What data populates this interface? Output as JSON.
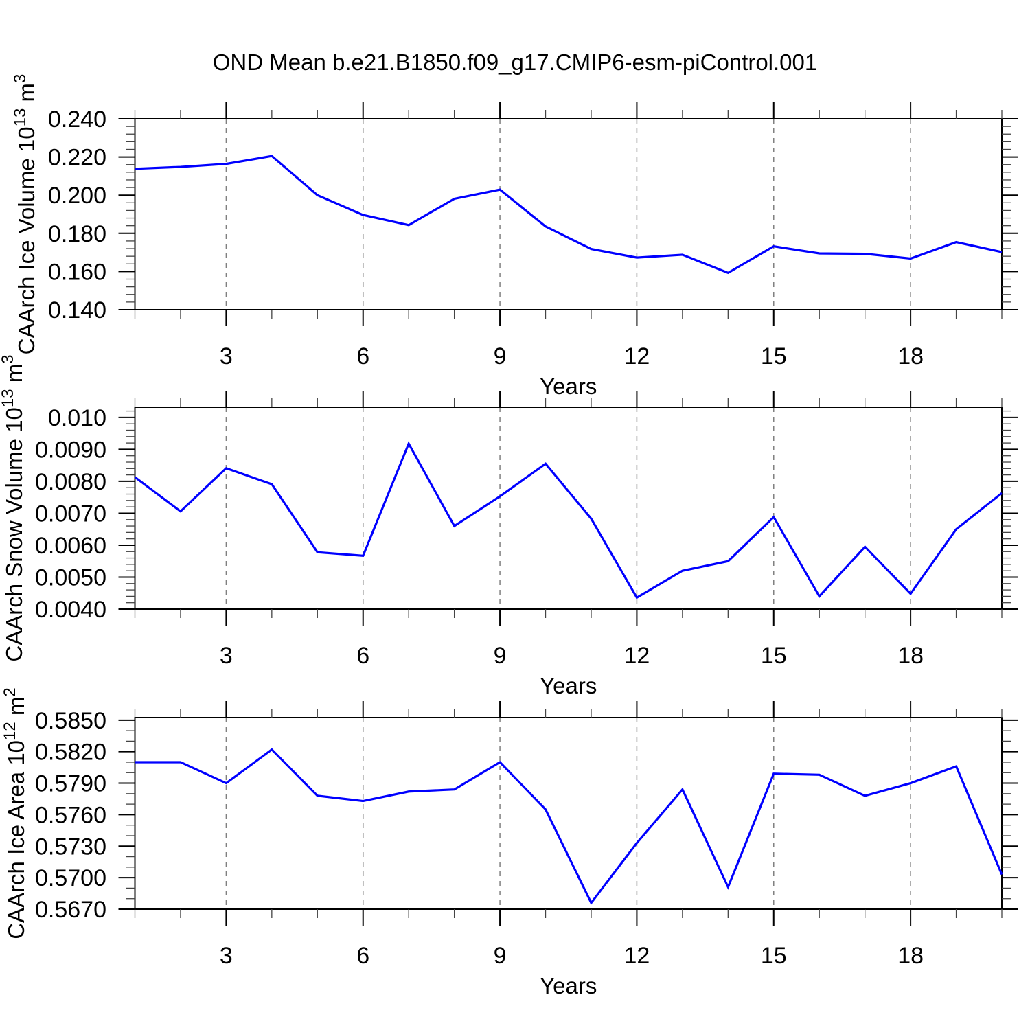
{
  "title": "OND Mean b.e21.B1850.f09_g17.CMIP6-esm-piControl.001",
  "colors": {
    "line": "#0000ff",
    "frame": "#000000",
    "grid": "#808080",
    "minor_tick": "#444444"
  },
  "chart_data": [
    {
      "type": "line",
      "name": "ice-volume",
      "ylabel": "CAArch Ice Volume 10^13 m^3",
      "ylabel_parts": [
        {
          "t": "CAArch Ice Volume 10",
          "sup": false
        },
        {
          "t": "13",
          "sup": true
        },
        {
          "t": " m",
          "sup": false
        },
        {
          "t": "3",
          "sup": true
        }
      ],
      "xlabel": "Years",
      "xlim": [
        1,
        20
      ],
      "ylim": [
        0.14,
        0.24
      ],
      "ytick_values": [
        0.14,
        0.16,
        0.18,
        0.2,
        0.22,
        0.24
      ],
      "ytick_labels": [
        "0.140",
        "0.160",
        "0.180",
        "0.200",
        "0.220",
        "0.240"
      ],
      "y_minor_step": 0.004,
      "xtick_major": [
        3,
        6,
        9,
        12,
        15,
        18
      ],
      "xtick_labels": [
        "3",
        "6",
        "9",
        "12",
        "15",
        "18"
      ],
      "x_minor_step": 1,
      "grid_at_major_x": true,
      "x": [
        1,
        2,
        3,
        4,
        5,
        6,
        7,
        8,
        9,
        10,
        11,
        12,
        13,
        14,
        15,
        16,
        17,
        18,
        19,
        20
      ],
      "values": [
        0.2138,
        0.2148,
        0.2164,
        0.2205,
        0.2,
        0.1896,
        0.1843,
        0.1981,
        0.2029,
        0.1836,
        0.1718,
        0.1673,
        0.1688,
        0.1593,
        0.1732,
        0.1695,
        0.1693,
        0.1668,
        0.1754,
        0.1702
      ]
    },
    {
      "type": "line",
      "name": "snow-volume",
      "ylabel": "CAArch Snow Volume 10^13 m^3",
      "ylabel_parts": [
        {
          "t": "CAArch Snow Volume 10",
          "sup": false
        },
        {
          "t": "13",
          "sup": true
        },
        {
          "t": " m",
          "sup": false
        },
        {
          "t": "3",
          "sup": true
        }
      ],
      "xlabel": "Years",
      "xlim": [
        1,
        20
      ],
      "ylim": [
        0.004,
        0.01032
      ],
      "ytick_values": [
        0.004,
        0.005,
        0.006,
        0.007,
        0.008,
        0.009,
        0.01
      ],
      "ytick_labels": [
        "0.0040",
        "0.0050",
        "0.0060",
        "0.0070",
        "0.0080",
        "0.0090",
        "0.010"
      ],
      "y_minor_step": 0.0002,
      "xtick_major": [
        3,
        6,
        9,
        12,
        15,
        18
      ],
      "xtick_labels": [
        "3",
        "6",
        "9",
        "12",
        "15",
        "18"
      ],
      "x_minor_step": 1,
      "grid_at_major_x": true,
      "x": [
        1,
        2,
        3,
        4,
        5,
        6,
        7,
        8,
        9,
        10,
        11,
        12,
        13,
        14,
        15,
        16,
        17,
        18,
        19,
        20
      ],
      "values": [
        0.00813,
        0.00706,
        0.00841,
        0.00791,
        0.00578,
        0.00567,
        0.00918,
        0.0066,
        0.00753,
        0.00855,
        0.00683,
        0.00436,
        0.0052,
        0.0055,
        0.00688,
        0.0044,
        0.00595,
        0.00448,
        0.0065,
        0.00763
      ]
    },
    {
      "type": "line",
      "name": "ice-area",
      "ylabel": "CAArch Ice Area 10^12 m^2",
      "ylabel_parts": [
        {
          "t": "CAArch Ice Area 10",
          "sup": false
        },
        {
          "t": "12",
          "sup": true
        },
        {
          "t": " m",
          "sup": false
        },
        {
          "t": "2",
          "sup": true
        }
      ],
      "xlabel": "Years",
      "xlim": [
        1,
        20
      ],
      "ylim": [
        0.567,
        0.58525
      ],
      "ytick_values": [
        0.567,
        0.57,
        0.573,
        0.576,
        0.579,
        0.582,
        0.585
      ],
      "ytick_labels": [
        "0.5670",
        "0.5700",
        "0.5730",
        "0.5760",
        "0.5790",
        "0.5820",
        "0.5850"
      ],
      "y_minor_step": 0.001,
      "xtick_major": [
        3,
        6,
        9,
        12,
        15,
        18
      ],
      "xtick_labels": [
        "3",
        "6",
        "9",
        "12",
        "15",
        "18"
      ],
      "x_minor_step": 1,
      "grid_at_major_x": true,
      "x": [
        1,
        2,
        3,
        4,
        5,
        6,
        7,
        8,
        9,
        10,
        11,
        12,
        13,
        14,
        15,
        16,
        17,
        18,
        19,
        20
      ],
      "values": [
        0.581,
        0.581,
        0.579,
        0.5822,
        0.5778,
        0.5773,
        0.5782,
        0.5784,
        0.581,
        0.5765,
        0.5676,
        0.5733,
        0.5784,
        0.5691,
        0.5799,
        0.5798,
        0.5778,
        0.579,
        0.5806,
        0.5703
      ]
    }
  ]
}
